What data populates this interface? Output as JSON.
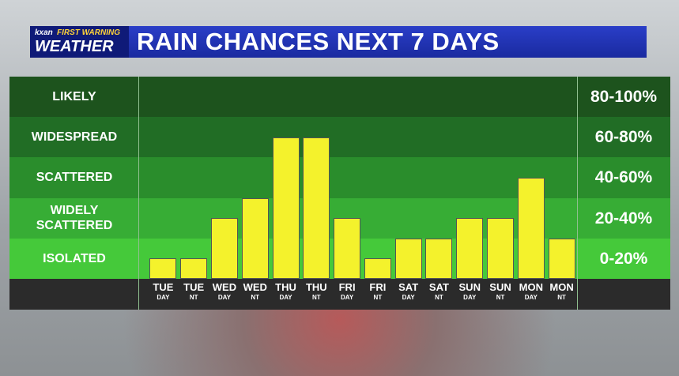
{
  "logo": {
    "brand": "kxan",
    "line1": "FIRST WARNING",
    "line2": "WEATHER"
  },
  "chart_data": {
    "type": "bar",
    "title": "RAIN CHANCES NEXT 7 DAYS",
    "categories": [
      "TUE",
      "TUE",
      "WED",
      "WED",
      "THU",
      "THU",
      "FRI",
      "FRI",
      "SAT",
      "SAT",
      "SUN",
      "SUN",
      "MON",
      "MON"
    ],
    "sublabels": [
      "DAY",
      "NT",
      "DAY",
      "NT",
      "DAY",
      "NT",
      "DAY",
      "NT",
      "DAY",
      "NT",
      "DAY",
      "NT",
      "DAY",
      "NT"
    ],
    "values": [
      10,
      10,
      30,
      40,
      70,
      70,
      30,
      10,
      20,
      20,
      30,
      30,
      50,
      20
    ],
    "color": "#f4f22c",
    "ylim": [
      0,
      100
    ],
    "yticks": [
      0,
      20,
      40,
      60,
      80,
      100
    ],
    "bands": [
      {
        "name": "LIKELY",
        "range": "80-100%",
        "color": "#1d531d"
      },
      {
        "name": "WIDESPREAD",
        "range": "60-80%",
        "color": "#216d25"
      },
      {
        "name": "SCATTERED",
        "range": "40-60%",
        "color": "#2a8d2c"
      },
      {
        "name": "WIDELY SCATTERED",
        "range": "20-40%",
        "color": "#37ad35"
      },
      {
        "name": "ISOLATED",
        "range": "0-20%",
        "color": "#45c93a"
      }
    ]
  }
}
